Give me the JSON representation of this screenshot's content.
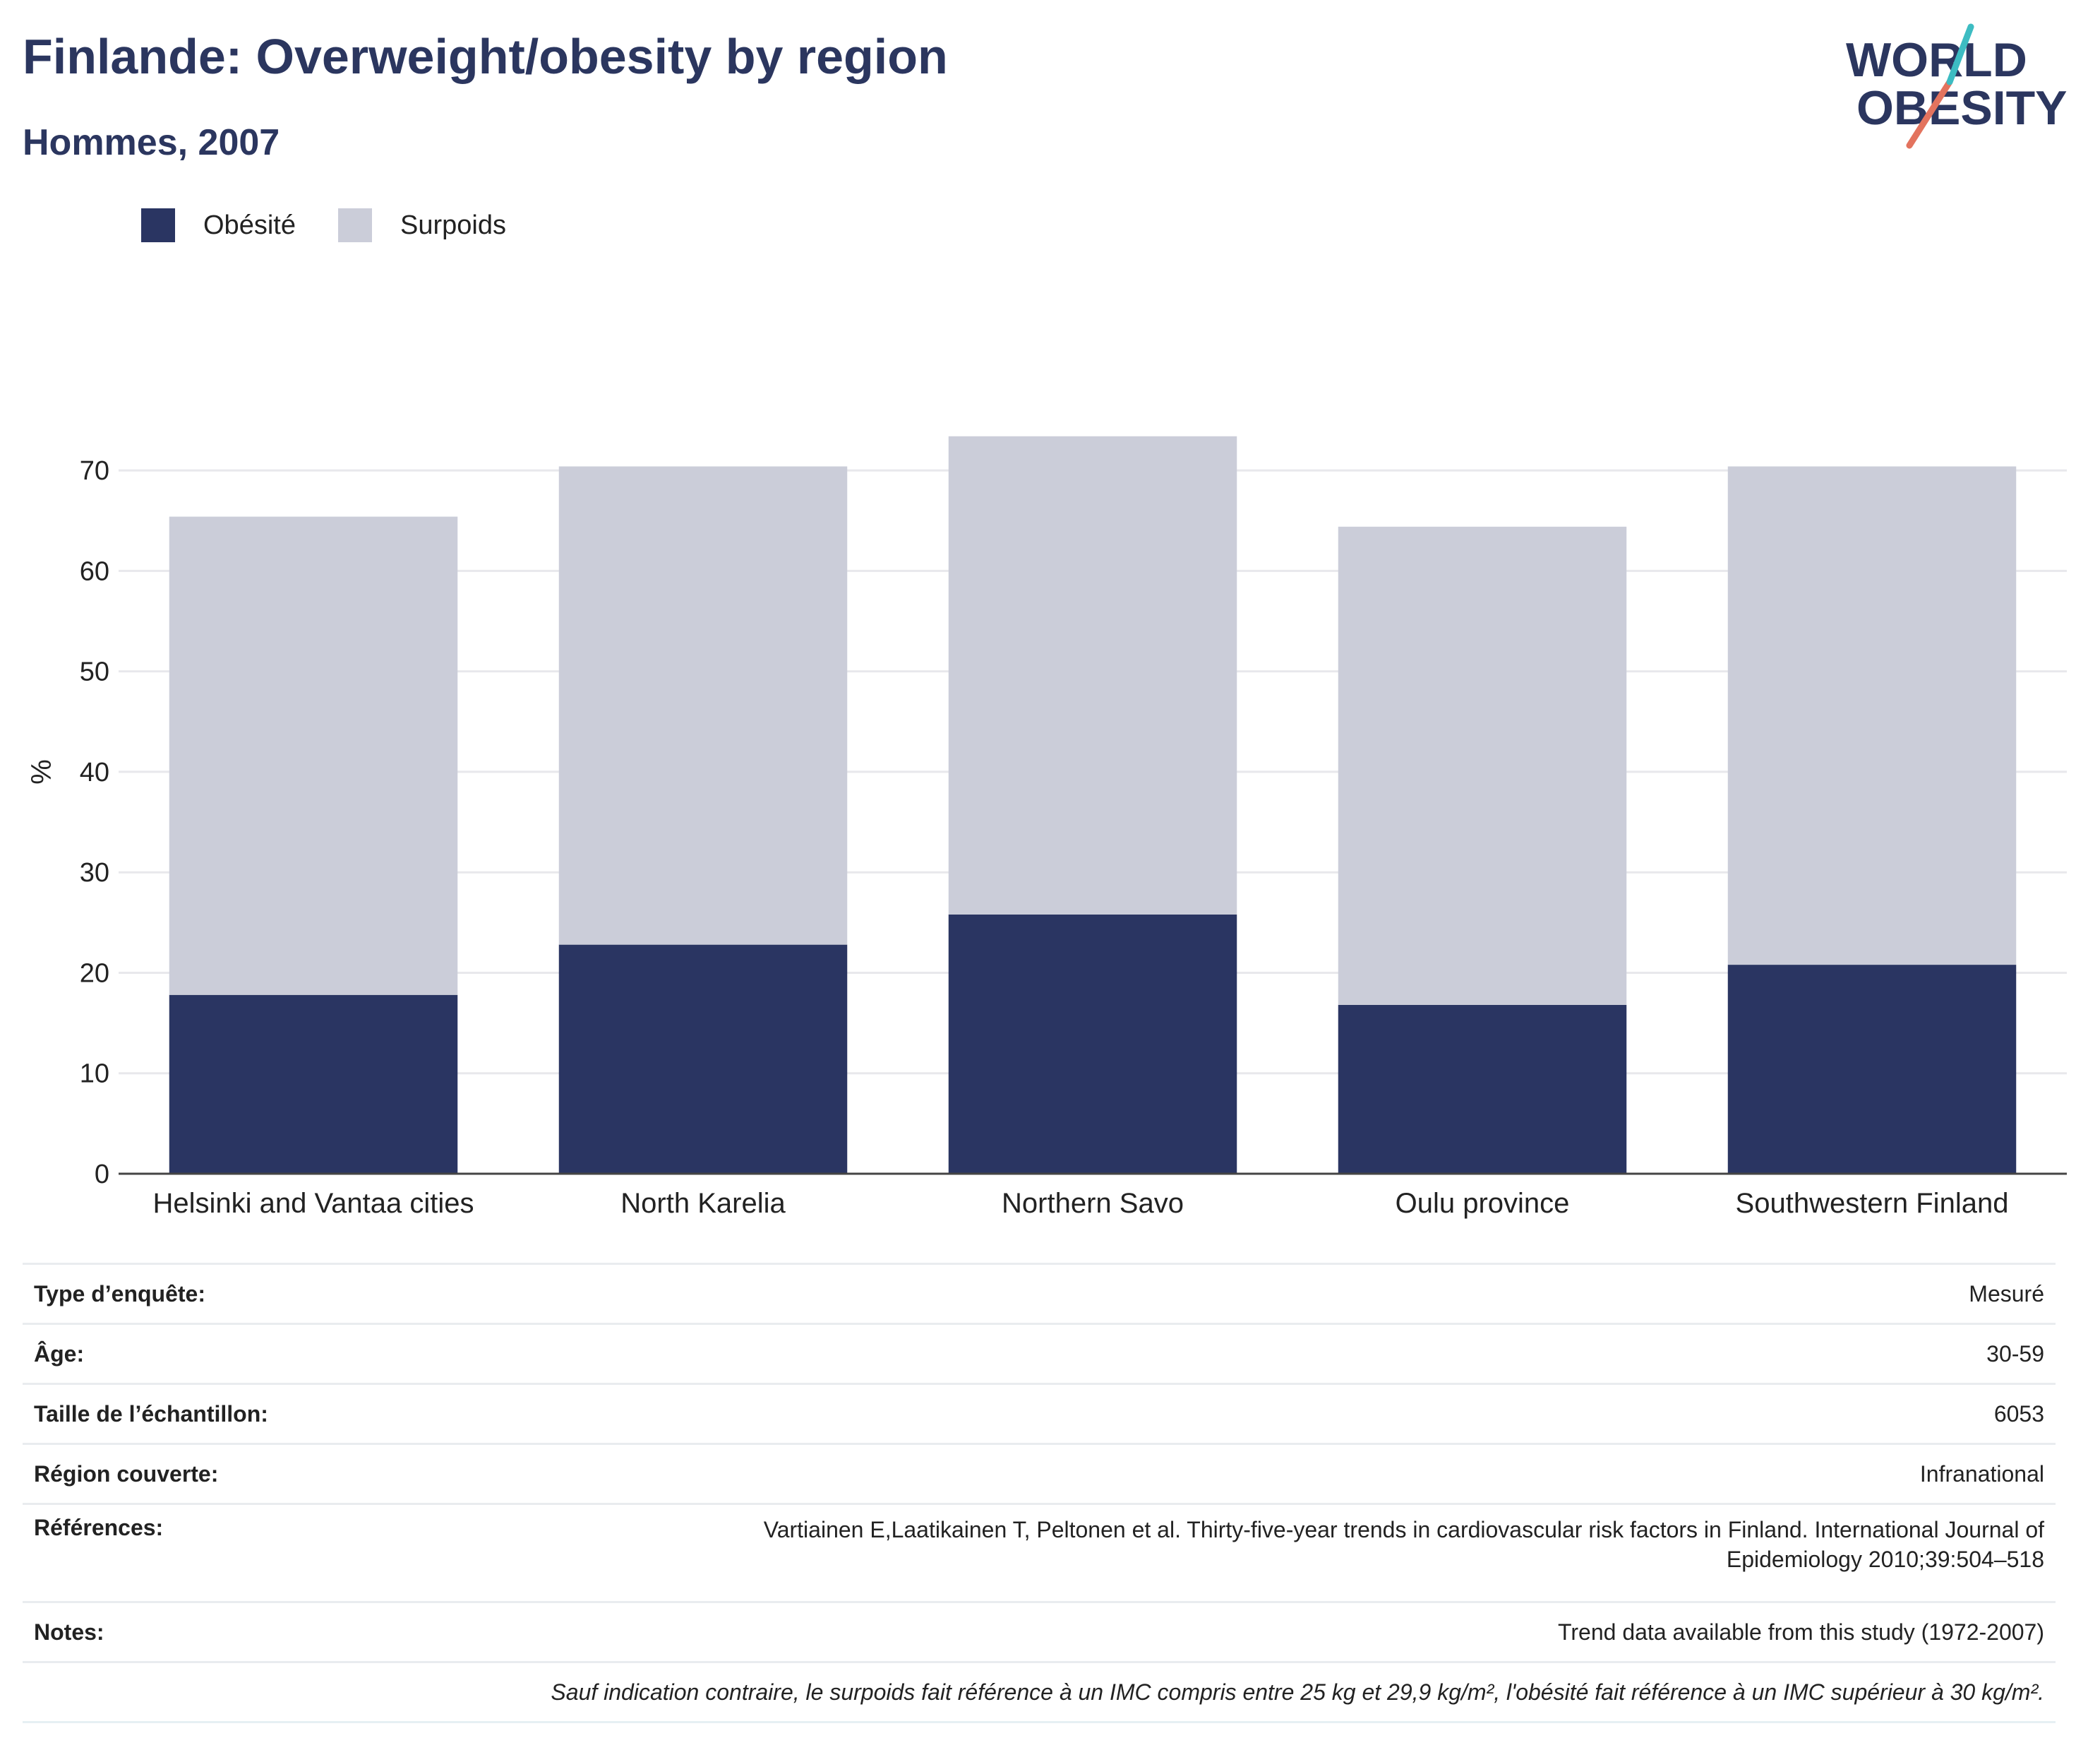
{
  "title": "Finlande: Overweight/obesity by region",
  "subtitle": "Hommes, 2007",
  "logo": {
    "line1": "WORLD",
    "line2": "OBESITY"
  },
  "legend": [
    {
      "label": "Obésité",
      "color": "#2a3562"
    },
    {
      "label": "Surpoids",
      "color": "#cbcdd9"
    }
  ],
  "chart_data": {
    "type": "bar",
    "stacked": true,
    "categories": [
      "Helsinki and Vantaa cities",
      "North Karelia",
      "Northern Savo",
      "Oulu province",
      "Southwestern Finland"
    ],
    "series": [
      {
        "name": "Obésité",
        "values": [
          17.8,
          22.8,
          25.8,
          16.8,
          20.8
        ],
        "color": "#2a3562"
      },
      {
        "name": "Surpoids",
        "values": [
          47.6,
          47.6,
          47.6,
          47.6,
          49.6
        ],
        "color": "#cbcdd9"
      }
    ],
    "ylabel": "%",
    "xlabel": "",
    "ylim": [
      0,
      75
    ],
    "yticks": [
      0,
      10,
      20,
      30,
      40,
      50,
      60,
      70
    ],
    "grid": true,
    "legend_position": "top-left"
  },
  "info": [
    {
      "key": "Type d’enquête:",
      "value": "Mesuré"
    },
    {
      "key": "Âge:",
      "value": "30-59"
    },
    {
      "key": "Taille de l’échantillon:",
      "value": "6053"
    },
    {
      "key": "Région couverte:",
      "value": "Infranational"
    },
    {
      "key": "Références:",
      "value": "Vartiainen E,Laatikainen T, Peltonen et al. Thirty-five-year trends in cardiovascular risk factors in Finland. International Journal of",
      "value2": "Epidemiology 2010;39:504–518"
    },
    {
      "key": "Notes:",
      "value": "Trend data available from this study (1972-2007)"
    }
  ],
  "footnote": "Sauf indication contraire, le surpoids fait référence à un IMC compris entre 25 kg et 29,9 kg/m², l'obésité fait référence à un IMC supérieur à 30 kg/m²."
}
